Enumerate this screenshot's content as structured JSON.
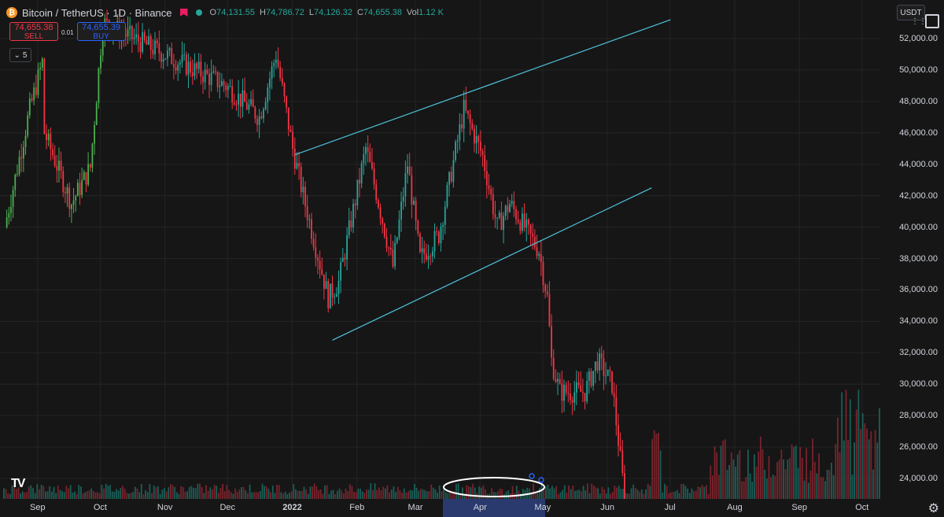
{
  "header": {
    "symbol": "Bitcoin / TetherUS · 1D · Binance",
    "ohlc": [
      {
        "key": "O",
        "value": "74,131.55"
      },
      {
        "key": "H",
        "value": "74,786.72"
      },
      {
        "key": "L",
        "value": "74,126.32"
      },
      {
        "key": "C",
        "value": "74,655.38"
      },
      {
        "key": "Vol",
        "value": "1.12 K"
      }
    ]
  },
  "trade": {
    "sell_price": "74,655.38",
    "sell_label": "SELL",
    "buy_price": "74,655.39",
    "buy_label": "BUY",
    "spread": "0.01"
  },
  "indicators_toggle": "5",
  "currency": "USDT",
  "colors": {
    "up": "#26a69a",
    "down": "#f23645",
    "upBright": "#4caf50",
    "trendline": "#4fc3dc",
    "bg": "#161616"
  },
  "chart_data": {
    "type": "candlestick",
    "title": "Bitcoin / TetherUS · 1D · Binance",
    "ylim": [
      22800,
      53000
    ],
    "y_ticks": [
      "52,000.00",
      "50,000.00",
      "48,000.00",
      "46,000.00",
      "44,000.00",
      "42,000.00",
      "40,000.00",
      "38,000.00",
      "36,000.00",
      "34,000.00",
      "32,000.00",
      "30,000.00",
      "28,000.00",
      "26,000.00",
      "24,000.00"
    ],
    "x_ticks": [
      "Sep",
      "Oct",
      "Nov",
      "Dec",
      "2022",
      "Feb",
      "Mar",
      "Apr",
      "May",
      "Jun",
      "Jul",
      "Aug",
      "Sep",
      "Oct"
    ],
    "price_path": [
      {
        "x": "2021-08-20",
        "price": 40000
      },
      {
        "x": "2021-09-01",
        "price": 47500
      },
      {
        "x": "2021-09-07",
        "price": 50500
      },
      {
        "x": "2021-09-08",
        "price": 46000
      },
      {
        "x": "2021-09-21",
        "price": 41500
      },
      {
        "x": "2021-09-30",
        "price": 43800
      },
      {
        "x": "2021-10-06",
        "price": 53000
      },
      {
        "x": "2021-12-04",
        "price": 49000
      },
      {
        "x": "2021-12-20",
        "price": 47000
      },
      {
        "x": "2021-12-28",
        "price": 51000
      },
      {
        "x": "2022-01-05",
        "price": 45000
      },
      {
        "x": "2022-01-10",
        "price": 42000
      },
      {
        "x": "2022-01-22",
        "price": 35500
      },
      {
        "x": "2022-01-27",
        "price": 36500
      },
      {
        "x": "2022-02-09",
        "price": 45000
      },
      {
        "x": "2022-02-14",
        "price": 42200
      },
      {
        "x": "2022-02-22",
        "price": 37500
      },
      {
        "x": "2022-03-01",
        "price": 44000
      },
      {
        "x": "2022-03-07",
        "price": 38000
      },
      {
        "x": "2022-03-16",
        "price": 39500
      },
      {
        "x": "2022-03-28",
        "price": 47500
      },
      {
        "x": "2022-04-06",
        "price": 44500
      },
      {
        "x": "2022-04-13",
        "price": 40000
      },
      {
        "x": "2022-04-19",
        "price": 41500
      },
      {
        "x": "2022-05-03",
        "price": 38500
      },
      {
        "x": "2022-05-07",
        "price": 35500
      },
      {
        "x": "2022-05-09",
        "price": 31500
      },
      {
        "x": "2022-05-13",
        "price": 29500
      },
      {
        "x": "2022-05-25",
        "price": 29500
      },
      {
        "x": "2022-05-31",
        "price": 31500
      },
      {
        "x": "2022-06-07",
        "price": 30000
      },
      {
        "x": "2022-06-13",
        "price": 22800
      }
    ],
    "trendlines": [
      {
        "from": {
          "x": "2022-01-06",
          "price": 44600
        },
        "to": {
          "x": "2022-07-05",
          "price": 53200
        }
      },
      {
        "from": {
          "x": "2022-01-24",
          "price": 32800
        },
        "to": {
          "x": "2022-06-26",
          "price": 42500
        }
      }
    ],
    "annotation": "ellipse around volume bars in March–April",
    "x_range_highlight": [
      "Mar",
      "Apr"
    ]
  }
}
